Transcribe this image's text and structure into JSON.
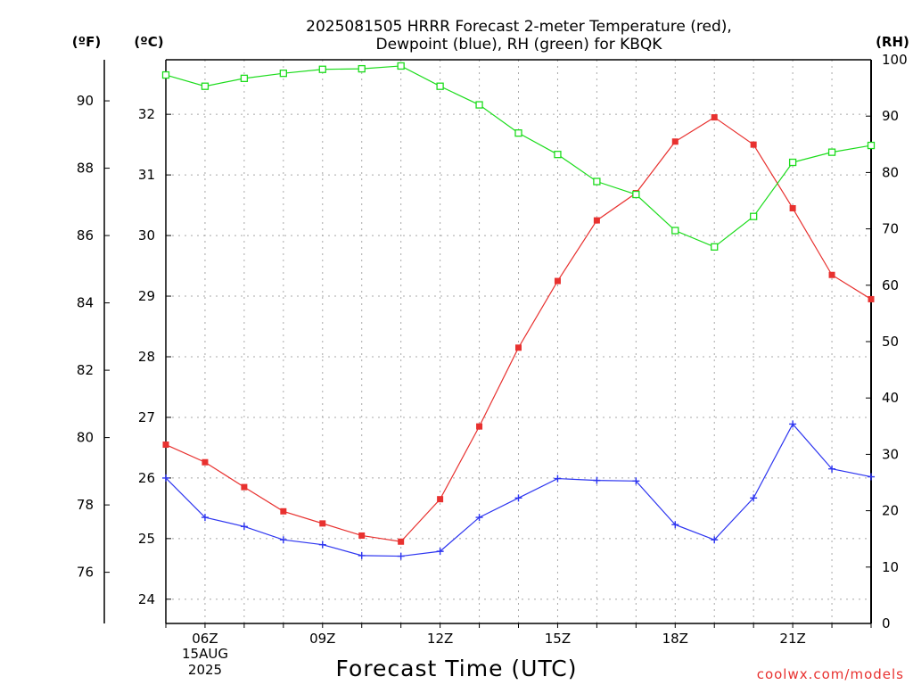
{
  "title_line1": "2025081505 HRRR Forecast 2-meter Temperature (red),",
  "title_line2": "Dewpoint (blue), RH (green) for KBQK",
  "credit": "coolwx.com/models",
  "chart_data": {
    "type": "line",
    "xlabel": "Forecast Time (UTC)",
    "x": [
      "05Z",
      "06Z",
      "07Z",
      "08Z",
      "09Z",
      "10Z",
      "11Z",
      "12Z",
      "13Z",
      "14Z",
      "15Z",
      "16Z",
      "17Z",
      "18Z",
      "19Z",
      "20Z",
      "21Z",
      "22Z",
      "23Z"
    ],
    "x_tick_labels": [
      "06Z",
      "09Z",
      "12Z",
      "15Z",
      "18Z",
      "21Z"
    ],
    "date_label": [
      "15AUG",
      "2025"
    ],
    "axes": {
      "left_outer": {
        "unit": "(ºF)",
        "ticks": [
          76,
          78,
          80,
          82,
          84,
          86,
          88,
          90
        ]
      },
      "left_inner": {
        "unit": "(ºC)",
        "range": [
          23.6,
          32.9
        ],
        "ticks": [
          24,
          25,
          26,
          27,
          28,
          29,
          30,
          31,
          32
        ]
      },
      "right": {
        "unit": "(RH)",
        "range": [
          0,
          100
        ],
        "ticks": [
          0,
          10,
          20,
          30,
          40,
          50,
          60,
          70,
          80,
          90,
          100
        ]
      }
    },
    "grid": true,
    "series": [
      {
        "name": "Temperature",
        "axis": "left_inner",
        "color": "#e8312f",
        "marker": "filled-square",
        "values": [
          26.55,
          26.26,
          25.85,
          25.45,
          25.25,
          25.05,
          24.95,
          25.65,
          26.85,
          28.15,
          29.25,
          30.25,
          30.7,
          31.55,
          31.95,
          31.5,
          30.45,
          29.35,
          28.95
        ]
      },
      {
        "name": "Dewpoint",
        "axis": "left_inner",
        "color": "#2d35f0",
        "marker": "plus",
        "values": [
          26.0,
          25.35,
          25.2,
          24.98,
          24.9,
          24.72,
          24.71,
          24.79,
          25.35,
          25.67,
          25.99,
          25.96,
          25.95,
          25.23,
          24.98,
          25.67,
          26.89,
          26.15,
          26.02
        ]
      },
      {
        "name": "RH",
        "axis": "right",
        "color": "#1cdc1c",
        "marker": "open-square",
        "values": [
          97.3,
          95.3,
          96.7,
          97.6,
          98.3,
          98.4,
          98.9,
          95.3,
          92.0,
          87.0,
          83.2,
          78.4,
          76.1,
          69.7,
          66.8,
          72.2,
          81.8,
          83.6,
          84.8
        ]
      }
    ]
  }
}
